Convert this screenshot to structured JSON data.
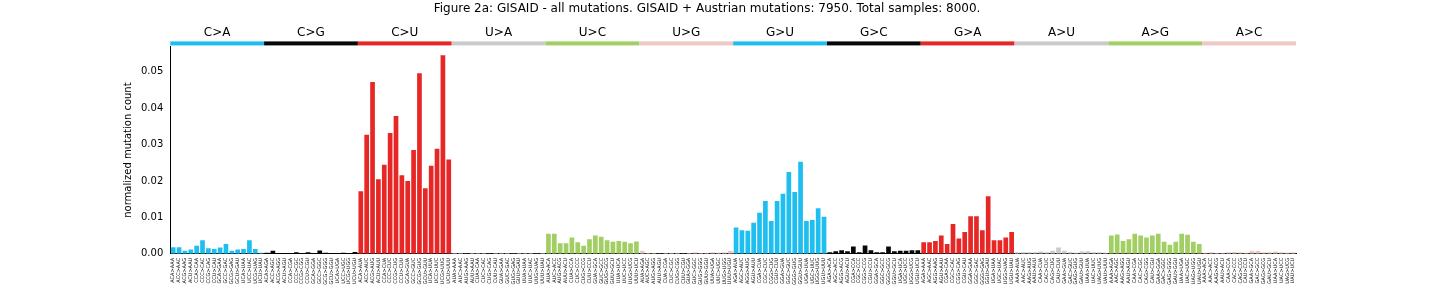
{
  "chart_data": {
    "type": "bar",
    "title": "Figure 2a: GISAID - all mutations. GISAID + Austrian mutations: 7950. Total samples: 8000.",
    "y_label": "normalized mutation count",
    "ylim": [
      0,
      0.057
    ],
    "yticks": [
      {
        "value": 0,
        "label": "0.00"
      },
      {
        "value": 0.01,
        "label": "0.01"
      },
      {
        "value": 0.02,
        "label": "0.02"
      },
      {
        "value": 0.03,
        "label": "0.03"
      },
      {
        "value": 0.04,
        "label": "0.04"
      },
      {
        "value": 0.05,
        "label": "0.05"
      }
    ],
    "grid": false,
    "annotations": [
      {
        "text": "C>A",
        "color": "#1ebff0"
      },
      {
        "text": "C>G",
        "color": "#050708"
      },
      {
        "text": "C>U",
        "color": "#e62725"
      },
      {
        "text": "U>A",
        "color": "#cbcacb"
      },
      {
        "text": "U>C",
        "color": "#a1cf64"
      },
      {
        "text": "U>G",
        "color": "#edc8c5"
      },
      {
        "text": "G>U",
        "color": "#1ebff0"
      },
      {
        "text": "G>C",
        "color": "#050708"
      },
      {
        "text": "G>A",
        "color": "#e62725"
      },
      {
        "text": "A>U",
        "color": "#cbcacb"
      },
      {
        "text": "A>G",
        "color": "#a1cf64"
      },
      {
        "text": "A>C",
        "color": "#edc8c5"
      }
    ],
    "categories": [
      "ACA>AAA",
      "ACC>AAC",
      "ACG>AAG",
      "ACU>AAU",
      "CCA>CAA",
      "CCC>CAC",
      "CCG>CAG",
      "CCU>CAU",
      "GCA>GAA",
      "GCC>GAC",
      "GCG>GAG",
      "GCU>GAU",
      "UCA>UAA",
      "UCC>UAC",
      "UCG>UAG",
      "UCU>UAU",
      "ACA>AGA",
      "ACC>AGC",
      "ACG>AGG",
      "ACU>AGU",
      "CCA>CGA",
      "CCC>CGC",
      "CCG>CGG",
      "CCU>CGU",
      "GCA>GGA",
      "GCC>GGC",
      "GCG>GGG",
      "GCU>GGU",
      "UCA>UGA",
      "UCC>UGC",
      "UCG>UGG",
      "UCU>UGU",
      "ACA>AUA",
      "ACC>AUC",
      "ACG>AUG",
      "ACU>AUU",
      "CCA>CUA",
      "CCC>CUC",
      "CCG>CUG",
      "CCU>CUU",
      "GCA>GUA",
      "GCC>GUC",
      "GCG>GUG",
      "GCU>GUU",
      "UCA>UUA",
      "UCC>UUC",
      "UCG>UUG",
      "UCU>UUU",
      "AUA>AAA",
      "AUC>AAC",
      "AUG>AAG",
      "AUU>AAU",
      "CUA>CAA",
      "CUC>CAC",
      "CUG>CAG",
      "CUU>CAU",
      "GUA>GAA",
      "GUC>GAC",
      "GUG>GAG",
      "GUU>GAU",
      "UUA>UAA",
      "UUC>UAC",
      "UUG>UAG",
      "UUU>UAU",
      "AUA>ACA",
      "AUC>ACC",
      "AUG>ACG",
      "AUU>ACU",
      "CUA>CCA",
      "CUC>CCC",
      "CUG>CCG",
      "CUU>CCU",
      "GUA>GCA",
      "GUC>GCC",
      "GUG>GCG",
      "GUU>GCU",
      "UUA>UCA",
      "UUC>UCC",
      "UUG>UCG",
      "UUU>UCU",
      "AUA>AGA",
      "AUC>AGC",
      "AUG>AGG",
      "AUU>AGU",
      "CUA>CGA",
      "CUC>CGC",
      "CUG>CGG",
      "CUU>CGU",
      "GUA>GGA",
      "GUC>GGC",
      "GUG>GGG",
      "GUU>GGU",
      "UUA>UGA",
      "UUC>UGC",
      "UUG>UGG",
      "UUU>UGU",
      "AGA>AUA",
      "AGC>AUC",
      "AGG>AUG",
      "AGU>AUU",
      "CGA>CUA",
      "CGC>CUC",
      "CGG>CUG",
      "CGU>CUU",
      "GGA>GUA",
      "GGC>GUC",
      "GGG>GUG",
      "GGU>GUU",
      "UGA>UUA",
      "UGC>UUC",
      "UGG>UUG",
      "UGU>UUU",
      "AGA>ACA",
      "AGC>ACC",
      "AGG>ACG",
      "AGU>ACU",
      "CGA>CCA",
      "CGC>CCC",
      "CGG>CCG",
      "CGU>CCU",
      "GGA>GCA",
      "GGC>GCC",
      "GGG>GCG",
      "GGU>GCU",
      "UGA>UCA",
      "UGC>UCC",
      "UGG>UCG",
      "UGU>UCU",
      "AGA>AAA",
      "AGC>AAC",
      "AGG>AAG",
      "AGU>AAU",
      "CGA>CAA",
      "CGC>CAC",
      "CGG>CAG",
      "CGU>CAU",
      "GGA>GAA",
      "GGC>GAC",
      "GGG>GAG",
      "GGU>GAU",
      "UGA>UAA",
      "UGC>UAC",
      "UGG>UAG",
      "UGU>UAU",
      "AAA>AUA",
      "AAC>AUC",
      "AAG>AUG",
      "AAU>AUU",
      "CAA>CUA",
      "CAC>CUC",
      "CAG>CUG",
      "CAU>CUU",
      "GAA>GUA",
      "GAC>GUC",
      "GAG>GUG",
      "GAU>GUU",
      "UAA>UUA",
      "UAC>UUC",
      "UAG>UUG",
      "UAU>UUU",
      "AAA>AGA",
      "AAC>AGC",
      "AAG>AGG",
      "AAU>AGU",
      "CAA>CGA",
      "CAC>CGC",
      "CAG>CGG",
      "CAU>CGU",
      "GAA>GGA",
      "GAC>GGC",
      "GAG>GGG",
      "GAU>GGU",
      "UAA>UGA",
      "UAC>UGC",
      "UAG>UGG",
      "UAU>UGU",
      "AAA>ACA",
      "AAC>ACC",
      "AAG>ACG",
      "AAU>ACU",
      "CAA>CCA",
      "CAC>CCC",
      "CAG>CCG",
      "CAU>CCU",
      "GAA>GCA",
      "GAC>GCC",
      "GAG>GCG",
      "GAU>GCU",
      "UAA>UCA",
      "UAC>UCC",
      "UAG>UCG",
      "UAU>UCU"
    ],
    "values": [
      0.0018,
      0.0018,
      0.0008,
      0.0012,
      0.0022,
      0.0037,
      0.0015,
      0.0013,
      0.0017,
      0.0027,
      0.0008,
      0.0012,
      0.0013,
      0.0037,
      0.0013,
      0.0003,
      0.0003,
      0.0008,
      0.0002,
      0.0001,
      0.0001,
      0.0004,
      0.0001,
      0.0004,
      0.0001,
      0.0009,
      0.0003,
      0.0002,
      0.0002,
      0.0003,
      0.0002,
      0.0005,
      0.0172,
      0.0327,
      0.0472,
      0.0205,
      0.0245,
      0.0332,
      0.0379,
      0.0216,
      0.02,
      0.0285,
      0.0496,
      0.018,
      0.0242,
      0.0289,
      0.0546,
      0.0259,
      0.0002,
      0.0002,
      0.0001,
      0.0002,
      0.0002,
      0.0002,
      0.0001,
      0.0002,
      0.0002,
      0.0002,
      0.0001,
      0.0002,
      0.0002,
      0.0002,
      0.0001,
      0.0002,
      0.0055,
      0.0055,
      0.0029,
      0.0029,
      0.0045,
      0.0032,
      0.0022,
      0.004,
      0.005,
      0.0047,
      0.0037,
      0.0033,
      0.0035,
      0.0033,
      0.0029,
      0.0034,
      0.0008,
      0.0002,
      0.0002,
      0.0001,
      0.0002,
      0.0002,
      0.0002,
      0.0001,
      0.0002,
      0.0004,
      0.0002,
      0.0002,
      0.0004,
      0.0003,
      0.0004,
      0.0008,
      0.0072,
      0.0065,
      0.0063,
      0.0085,
      0.0113,
      0.0145,
      0.009,
      0.0145,
      0.0165,
      0.0225,
      0.017,
      0.0253,
      0.009,
      0.0093,
      0.0125,
      0.0102,
      0.0004,
      0.0007,
      0.001,
      0.0007,
      0.002,
      0.0004,
      0.0023,
      0.001,
      0.0004,
      0.0004,
      0.002,
      0.0007,
      0.0008,
      0.0008,
      0.001,
      0.001,
      0.0032,
      0.0032,
      0.0035,
      0.005,
      0.0027,
      0.0082,
      0.0042,
      0.006,
      0.0103,
      0.0103,
      0.0065,
      0.0158,
      0.0037,
      0.0037,
      0.0045,
      0.006,
      0.0004,
      0.0004,
      0.0004,
      0.0004,
      0.0006,
      0.0004,
      0.0008,
      0.0017,
      0.0008,
      0.0004,
      0.0003,
      0.0006,
      0.0007,
      0.0004,
      0.0004,
      0.0003,
      0.005,
      0.0053,
      0.0035,
      0.004,
      0.0055,
      0.005,
      0.0045,
      0.005,
      0.0055,
      0.0033,
      0.0025,
      0.0033,
      0.0055,
      0.0052,
      0.0033,
      0.0027,
      0.0003,
      0.0004,
      0.0002,
      0.0002,
      0.0004,
      0.0005,
      0.0004,
      0.0003,
      0.0008,
      0.0008,
      0.0004,
      0.0004,
      0.0006,
      0.0004,
      0.0003,
      0.0004
    ],
    "colors": [
      "#1ebff0",
      "#1ebff0",
      "#1ebff0",
      "#1ebff0",
      "#1ebff0",
      "#1ebff0",
      "#1ebff0",
      "#1ebff0",
      "#1ebff0",
      "#1ebff0",
      "#1ebff0",
      "#1ebff0",
      "#1ebff0",
      "#1ebff0",
      "#1ebff0",
      "#1ebff0",
      "#050708",
      "#050708",
      "#050708",
      "#050708",
      "#050708",
      "#050708",
      "#050708",
      "#050708",
      "#050708",
      "#050708",
      "#050708",
      "#050708",
      "#050708",
      "#050708",
      "#050708",
      "#050708",
      "#e62725",
      "#e62725",
      "#e62725",
      "#e62725",
      "#e62725",
      "#e62725",
      "#e62725",
      "#e62725",
      "#e62725",
      "#e62725",
      "#e62725",
      "#e62725",
      "#e62725",
      "#e62725",
      "#e62725",
      "#e62725",
      "#cbcacb",
      "#cbcacb",
      "#cbcacb",
      "#cbcacb",
      "#cbcacb",
      "#cbcacb",
      "#cbcacb",
      "#cbcacb",
      "#cbcacb",
      "#cbcacb",
      "#cbcacb",
      "#cbcacb",
      "#cbcacb",
      "#cbcacb",
      "#cbcacb",
      "#cbcacb",
      "#a1cf64",
      "#a1cf64",
      "#a1cf64",
      "#a1cf64",
      "#a1cf64",
      "#a1cf64",
      "#a1cf64",
      "#a1cf64",
      "#a1cf64",
      "#a1cf64",
      "#a1cf64",
      "#a1cf64",
      "#a1cf64",
      "#a1cf64",
      "#a1cf64",
      "#a1cf64",
      "#edc8c5",
      "#edc8c5",
      "#edc8c5",
      "#edc8c5",
      "#edc8c5",
      "#edc8c5",
      "#edc8c5",
      "#edc8c5",
      "#edc8c5",
      "#edc8c5",
      "#edc8c5",
      "#edc8c5",
      "#edc8c5",
      "#edc8c5",
      "#edc8c5",
      "#edc8c5",
      "#1ebff0",
      "#1ebff0",
      "#1ebff0",
      "#1ebff0",
      "#1ebff0",
      "#1ebff0",
      "#1ebff0",
      "#1ebff0",
      "#1ebff0",
      "#1ebff0",
      "#1ebff0",
      "#1ebff0",
      "#1ebff0",
      "#1ebff0",
      "#1ebff0",
      "#1ebff0",
      "#050708",
      "#050708",
      "#050708",
      "#050708",
      "#050708",
      "#050708",
      "#050708",
      "#050708",
      "#050708",
      "#050708",
      "#050708",
      "#050708",
      "#050708",
      "#050708",
      "#050708",
      "#050708",
      "#e62725",
      "#e62725",
      "#e62725",
      "#e62725",
      "#e62725",
      "#e62725",
      "#e62725",
      "#e62725",
      "#e62725",
      "#e62725",
      "#e62725",
      "#e62725",
      "#e62725",
      "#e62725",
      "#e62725",
      "#e62725",
      "#cbcacb",
      "#cbcacb",
      "#cbcacb",
      "#cbcacb",
      "#cbcacb",
      "#cbcacb",
      "#cbcacb",
      "#cbcacb",
      "#cbcacb",
      "#cbcacb",
      "#cbcacb",
      "#cbcacb",
      "#cbcacb",
      "#cbcacb",
      "#cbcacb",
      "#cbcacb",
      "#a1cf64",
      "#a1cf64",
      "#a1cf64",
      "#a1cf64",
      "#a1cf64",
      "#a1cf64",
      "#a1cf64",
      "#a1cf64",
      "#a1cf64",
      "#a1cf64",
      "#a1cf64",
      "#a1cf64",
      "#a1cf64",
      "#a1cf64",
      "#a1cf64",
      "#a1cf64",
      "#edc8c5",
      "#edc8c5",
      "#edc8c5",
      "#edc8c5",
      "#edc8c5",
      "#edc8c5",
      "#edc8c5",
      "#edc8c5",
      "#edc8c5",
      "#edc8c5",
      "#edc8c5",
      "#edc8c5",
      "#edc8c5",
      "#edc8c5",
      "#edc8c5",
      "#edc8c5"
    ]
  }
}
